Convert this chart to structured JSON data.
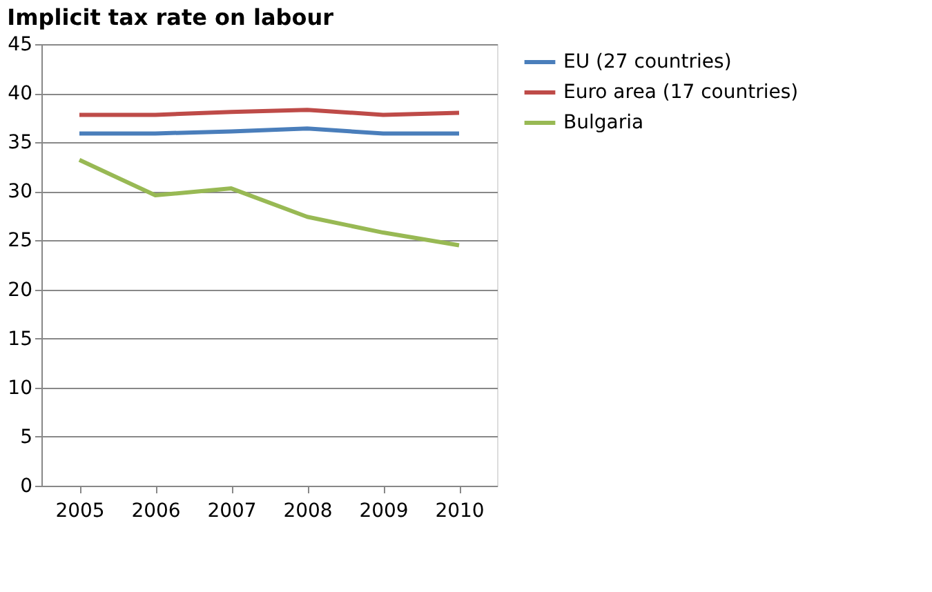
{
  "chart_data": {
    "type": "line",
    "title": "Implicit tax rate on labour",
    "categories": [
      "2005",
      "2006",
      "2007",
      "2008",
      "2009",
      "2010"
    ],
    "series": [
      {
        "name": "EU (27 countries)",
        "color": "#4a7ebb",
        "values": [
          35.9,
          35.9,
          36.1,
          36.4,
          35.9,
          35.9
        ]
      },
      {
        "name": "Euro area (17 countries)",
        "color": "#be4b48",
        "values": [
          37.8,
          37.8,
          38.1,
          38.3,
          37.8,
          38.0
        ]
      },
      {
        "name": "Bulgaria",
        "color": "#98b954",
        "values": [
          33.2,
          29.6,
          30.3,
          27.4,
          25.8,
          24.5
        ]
      }
    ],
    "ylim": [
      0,
      45
    ],
    "yticks": [
      0,
      5,
      10,
      15,
      20,
      25,
      30,
      35,
      40,
      45
    ],
    "grid": "y",
    "legend": "right",
    "marker": "none",
    "line_style": "solid"
  }
}
